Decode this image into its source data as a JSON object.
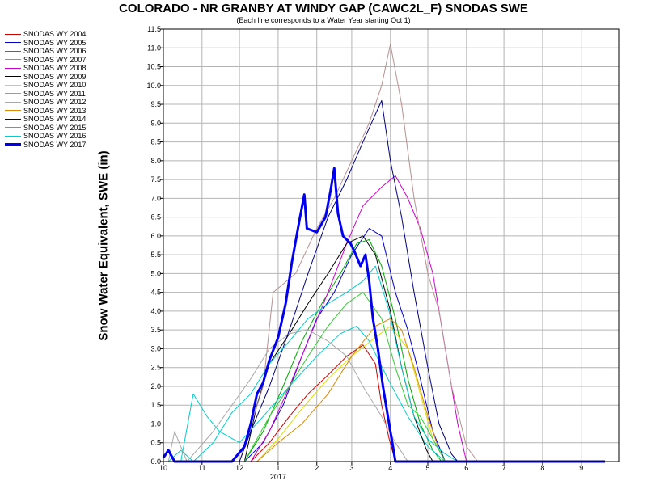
{
  "chart_data": {
    "type": "line",
    "title": "COLORADO - NR GRANBY AT WINDY GAP (CAWC2L_F) SNODAS SWE",
    "subtitle": "(Each line corresponds to a Water Year starting Oct 1)",
    "ylabel": "Snow Water Equivalent, SWE (in)",
    "xlabel": "",
    "year_label": "2017",
    "ylim": [
      0,
      11.5
    ],
    "yticks": [
      "0.0",
      "0.5",
      "1.0",
      "1.5",
      "2.0",
      "2.5",
      "3.0",
      "3.5",
      "4.0",
      "4.5",
      "5.0",
      "5.5",
      "6.0",
      "6.5",
      "7.0",
      "7.5",
      "8.0",
      "8.5",
      "9.0",
      "9.5",
      "10.0",
      "10.5",
      "11.0",
      "11.5"
    ],
    "xlim": [
      "2016-10-01",
      "2017-10-01"
    ],
    "xticks": [
      {
        "date": "2016-10-01",
        "label": "10"
      },
      {
        "date": "2016-11-01",
        "label": "11"
      },
      {
        "date": "2016-12-01",
        "label": "12"
      },
      {
        "date": "2017-01-01",
        "label": "1"
      },
      {
        "date": "2017-02-01",
        "label": "2"
      },
      {
        "date": "2017-03-01",
        "label": "3"
      },
      {
        "date": "2017-04-01",
        "label": "4"
      },
      {
        "date": "2017-05-01",
        "label": "5"
      },
      {
        "date": "2017-06-01",
        "label": "6"
      },
      {
        "date": "2017-07-01",
        "label": "7"
      },
      {
        "date": "2017-08-01",
        "label": "8"
      },
      {
        "date": "2017-09-01",
        "label": "9"
      }
    ],
    "grid": true,
    "legend_position": "left",
    "series": [
      {
        "name": "SNODAS WY 2004",
        "color": "#cc0000",
        "width": 1,
        "points": [
          [
            "2016-12-10",
            0.0
          ],
          [
            "2016-12-25",
            0.5
          ],
          [
            "2017-01-10",
            1.2
          ],
          [
            "2017-01-25",
            1.8
          ],
          [
            "2017-02-10",
            2.3
          ],
          [
            "2017-02-25",
            2.8
          ],
          [
            "2017-03-10",
            3.1
          ],
          [
            "2017-03-20",
            2.6
          ],
          [
            "2017-03-25",
            1.5
          ],
          [
            "2017-03-31",
            0.6
          ],
          [
            "2017-04-05",
            0.0
          ]
        ]
      },
      {
        "name": "SNODAS WY 2005",
        "color": "#0000cc",
        "width": 1,
        "points": [
          [
            "2016-12-05",
            0.0
          ],
          [
            "2016-12-20",
            0.5
          ],
          [
            "2017-01-05",
            1.5
          ],
          [
            "2017-01-20",
            2.8
          ],
          [
            "2017-02-01",
            3.8
          ],
          [
            "2017-02-15",
            4.5
          ],
          [
            "2017-03-01",
            5.5
          ],
          [
            "2017-03-15",
            6.2
          ],
          [
            "2017-03-25",
            6.0
          ],
          [
            "2017-04-05",
            4.5
          ],
          [
            "2017-04-15",
            3.5
          ],
          [
            "2017-04-25",
            2.2
          ],
          [
            "2017-05-05",
            0.8
          ],
          [
            "2017-05-15",
            0.0
          ]
        ]
      },
      {
        "name": "SNODAS WY 2006",
        "color": "#00aa00",
        "width": 1,
        "points": [
          [
            "2016-12-05",
            0.0
          ],
          [
            "2016-12-20",
            0.8
          ],
          [
            "2017-01-05",
            2.0
          ],
          [
            "2017-01-20",
            3.2
          ],
          [
            "2017-02-05",
            4.2
          ],
          [
            "2017-02-20",
            5.0
          ],
          [
            "2017-03-05",
            5.8
          ],
          [
            "2017-03-15",
            5.9
          ],
          [
            "2017-03-25",
            5.2
          ],
          [
            "2017-04-05",
            3.8
          ],
          [
            "2017-04-15",
            2.2
          ],
          [
            "2017-04-25",
            1.0
          ],
          [
            "2017-05-05",
            0.3
          ],
          [
            "2017-05-12",
            0.0
          ]
        ]
      },
      {
        "name": "SNODAS WY 2007",
        "color": "#00cccc",
        "width": 1,
        "points": [
          [
            "2016-10-15",
            0.0
          ],
          [
            "2016-10-25",
            1.8
          ],
          [
            "2016-11-05",
            1.2
          ],
          [
            "2016-11-15",
            0.8
          ],
          [
            "2016-12-01",
            0.5
          ],
          [
            "2016-12-20",
            1.2
          ],
          [
            "2017-01-10",
            2.0
          ],
          [
            "2017-02-01",
            2.8
          ],
          [
            "2017-02-20",
            3.4
          ],
          [
            "2017-03-05",
            3.6
          ],
          [
            "2017-03-15",
            3.2
          ],
          [
            "2017-03-30",
            2.2
          ],
          [
            "2017-04-15",
            1.2
          ],
          [
            "2017-05-01",
            0.4
          ],
          [
            "2017-05-15",
            0.0
          ]
        ]
      },
      {
        "name": "SNODAS WY 2008",
        "color": "#cc00cc",
        "width": 1,
        "points": [
          [
            "2016-12-10",
            0.0
          ],
          [
            "2016-12-25",
            0.8
          ],
          [
            "2017-01-10",
            2.0
          ],
          [
            "2017-01-25",
            3.2
          ],
          [
            "2017-02-10",
            4.5
          ],
          [
            "2017-02-25",
            5.8
          ],
          [
            "2017-03-10",
            6.8
          ],
          [
            "2017-03-25",
            7.3
          ],
          [
            "2017-04-05",
            7.6
          ],
          [
            "2017-04-15",
            7.0
          ],
          [
            "2017-04-25",
            6.2
          ],
          [
            "2017-05-05",
            5.0
          ],
          [
            "2017-05-15",
            3.0
          ],
          [
            "2017-05-25",
            1.0
          ],
          [
            "2017-06-01",
            0.0
          ]
        ]
      },
      {
        "name": "SNODAS WY 2009",
        "color": "#000000",
        "width": 1,
        "points": [
          [
            "2016-12-05",
            0.0
          ],
          [
            "2016-12-15",
            1.5
          ],
          [
            "2016-12-25",
            2.6
          ],
          [
            "2017-01-10",
            3.4
          ],
          [
            "2017-01-25",
            4.2
          ],
          [
            "2017-02-10",
            5.0
          ],
          [
            "2017-02-25",
            5.8
          ],
          [
            "2017-03-10",
            6.0
          ],
          [
            "2017-03-20",
            5.5
          ],
          [
            "2017-04-01",
            4.0
          ],
          [
            "2017-04-10",
            2.5
          ],
          [
            "2017-04-20",
            1.2
          ],
          [
            "2017-04-30",
            0.3
          ],
          [
            "2017-05-05",
            0.0
          ]
        ]
      },
      {
        "name": "SNODAS WY 2010",
        "color": "#dddd00",
        "width": 1,
        "points": [
          [
            "2016-12-15",
            0.0
          ],
          [
            "2017-01-01",
            0.6
          ],
          [
            "2017-01-20",
            1.4
          ],
          [
            "2017-02-10",
            2.2
          ],
          [
            "2017-03-01",
            2.8
          ],
          [
            "2017-03-20",
            3.3
          ],
          [
            "2017-04-01",
            3.6
          ],
          [
            "2017-04-15",
            3.0
          ],
          [
            "2017-04-25",
            1.8
          ],
          [
            "2017-05-05",
            0.6
          ],
          [
            "2017-05-15",
            0.0
          ]
        ]
      },
      {
        "name": "SNODAS WY 2011",
        "color": "#b89090",
        "width": 1,
        "points": [
          [
            "2016-12-01",
            0.0
          ],
          [
            "2016-12-20",
            2.0
          ],
          [
            "2016-12-28",
            4.5
          ],
          [
            "2017-01-15",
            5.0
          ],
          [
            "2017-02-01",
            6.2
          ],
          [
            "2017-02-15",
            7.0
          ],
          [
            "2017-03-01",
            8.0
          ],
          [
            "2017-03-15",
            9.0
          ],
          [
            "2017-03-25",
            10.0
          ],
          [
            "2017-04-01",
            11.1
          ],
          [
            "2017-04-10",
            9.5
          ],
          [
            "2017-04-20",
            7.0
          ],
          [
            "2017-05-01",
            5.0
          ],
          [
            "2017-05-10",
            4.0
          ],
          [
            "2017-05-20",
            2.0
          ],
          [
            "2017-06-01",
            0.4
          ],
          [
            "2017-06-10",
            0.0
          ]
        ]
      },
      {
        "name": "SNODAS WY 2012",
        "color": "#a8a8a8",
        "width": 1,
        "points": [
          [
            "2016-10-05",
            0.0
          ],
          [
            "2016-10-10",
            0.8
          ],
          [
            "2016-10-20",
            0.0
          ],
          [
            "2016-11-10",
            0.8
          ],
          [
            "2016-11-25",
            1.5
          ],
          [
            "2016-12-10",
            2.2
          ],
          [
            "2016-12-25",
            3.0
          ],
          [
            "2017-01-10",
            3.4
          ],
          [
            "2017-01-25",
            3.5
          ],
          [
            "2017-02-10",
            3.2
          ],
          [
            "2017-02-25",
            2.8
          ],
          [
            "2017-03-10",
            2.0
          ],
          [
            "2017-03-25",
            1.2
          ],
          [
            "2017-04-05",
            0.5
          ],
          [
            "2017-04-15",
            0.0
          ]
        ]
      },
      {
        "name": "SNODAS WY 2013",
        "color": "#e08800",
        "width": 1,
        "points": [
          [
            "2016-12-15",
            0.0
          ],
          [
            "2017-01-01",
            0.5
          ],
          [
            "2017-01-20",
            1.0
          ],
          [
            "2017-02-10",
            1.8
          ],
          [
            "2017-03-01",
            2.8
          ],
          [
            "2017-03-20",
            3.6
          ],
          [
            "2017-04-01",
            3.8
          ],
          [
            "2017-04-10",
            3.5
          ],
          [
            "2017-04-20",
            2.5
          ],
          [
            "2017-05-01",
            1.2
          ],
          [
            "2017-05-10",
            0.3
          ],
          [
            "2017-05-15",
            0.0
          ]
        ]
      },
      {
        "name": "SNODAS WY 2014",
        "color": "#000080",
        "width": 1,
        "points": [
          [
            "2016-12-01",
            0.0
          ],
          [
            "2016-12-10",
            0.8
          ],
          [
            "2016-12-25",
            2.0
          ],
          [
            "2017-01-10",
            3.5
          ],
          [
            "2017-01-25",
            5.0
          ],
          [
            "2017-02-10",
            6.5
          ],
          [
            "2017-02-25",
            7.5
          ],
          [
            "2017-03-10",
            8.5
          ],
          [
            "2017-03-25",
            9.6
          ],
          [
            "2017-04-01",
            8.0
          ],
          [
            "2017-04-10",
            6.5
          ],
          [
            "2017-04-20",
            4.5
          ],
          [
            "2017-05-01",
            2.5
          ],
          [
            "2017-05-10",
            1.0
          ],
          [
            "2017-05-20",
            0.2
          ],
          [
            "2017-05-25",
            0.0
          ]
        ]
      },
      {
        "name": "SNODAS WY 2015",
        "color": "#33cc33",
        "width": 1,
        "points": [
          [
            "2016-12-05",
            0.0
          ],
          [
            "2016-12-25",
            1.2
          ],
          [
            "2017-01-10",
            2.0
          ],
          [
            "2017-01-25",
            2.8
          ],
          [
            "2017-02-10",
            3.6
          ],
          [
            "2017-02-25",
            4.2
          ],
          [
            "2017-03-10",
            4.5
          ],
          [
            "2017-03-25",
            3.8
          ],
          [
            "2017-04-05",
            2.5
          ],
          [
            "2017-04-15",
            1.5
          ],
          [
            "2017-04-25",
            1.2
          ],
          [
            "2017-05-05",
            0.6
          ],
          [
            "2017-05-15",
            0.0
          ]
        ]
      },
      {
        "name": "SNODAS WY 2016",
        "color": "#00cccc",
        "width": 1,
        "points": [
          [
            "2016-10-05",
            0.0
          ],
          [
            "2016-10-15",
            0.3
          ],
          [
            "2016-10-25",
            0.0
          ],
          [
            "2016-11-10",
            0.5
          ],
          [
            "2016-11-25",
            1.3
          ],
          [
            "2016-12-10",
            1.8
          ],
          [
            "2016-12-25",
            2.6
          ],
          [
            "2017-01-10",
            3.2
          ],
          [
            "2017-01-25",
            3.8
          ],
          [
            "2017-02-10",
            4.2
          ],
          [
            "2017-02-25",
            4.5
          ],
          [
            "2017-03-10",
            4.8
          ],
          [
            "2017-03-20",
            5.2
          ],
          [
            "2017-03-31",
            4.0
          ],
          [
            "2017-04-10",
            2.5
          ],
          [
            "2017-04-20",
            1.2
          ],
          [
            "2017-05-01",
            0.6
          ],
          [
            "2017-05-15",
            0.2
          ],
          [
            "2017-05-25",
            0.0
          ]
        ]
      },
      {
        "name": "SNODAS WY 2017",
        "color": "#0000ee",
        "width": 3,
        "points": [
          [
            "2016-10-01",
            0.1
          ],
          [
            "2016-10-05",
            0.3
          ],
          [
            "2016-10-10",
            0.0
          ],
          [
            "2016-11-25",
            0.0
          ],
          [
            "2016-12-05",
            0.4
          ],
          [
            "2016-12-10",
            1.0
          ],
          [
            "2016-12-15",
            1.8
          ],
          [
            "2016-12-20",
            2.1
          ],
          [
            "2016-12-25",
            2.7
          ],
          [
            "2017-01-01",
            3.3
          ],
          [
            "2017-01-07",
            4.2
          ],
          [
            "2017-01-12",
            5.3
          ],
          [
            "2017-01-18",
            6.4
          ],
          [
            "2017-01-22",
            7.1
          ],
          [
            "2017-01-24",
            6.2
          ],
          [
            "2017-02-01",
            6.1
          ],
          [
            "2017-02-08",
            6.5
          ],
          [
            "2017-02-12",
            7.2
          ],
          [
            "2017-02-15",
            7.8
          ],
          [
            "2017-02-18",
            6.6
          ],
          [
            "2017-02-22",
            6.0
          ],
          [
            "2017-02-28",
            5.8
          ],
          [
            "2017-03-03",
            5.6
          ],
          [
            "2017-03-08",
            5.2
          ],
          [
            "2017-03-12",
            5.5
          ],
          [
            "2017-03-15",
            4.8
          ],
          [
            "2017-03-18",
            3.8
          ],
          [
            "2017-03-22",
            3.0
          ],
          [
            "2017-03-26",
            2.0
          ],
          [
            "2017-03-30",
            1.2
          ],
          [
            "2017-04-02",
            0.6
          ],
          [
            "2017-04-05",
            0.0
          ],
          [
            "2017-09-20",
            0.0
          ]
        ]
      }
    ]
  }
}
